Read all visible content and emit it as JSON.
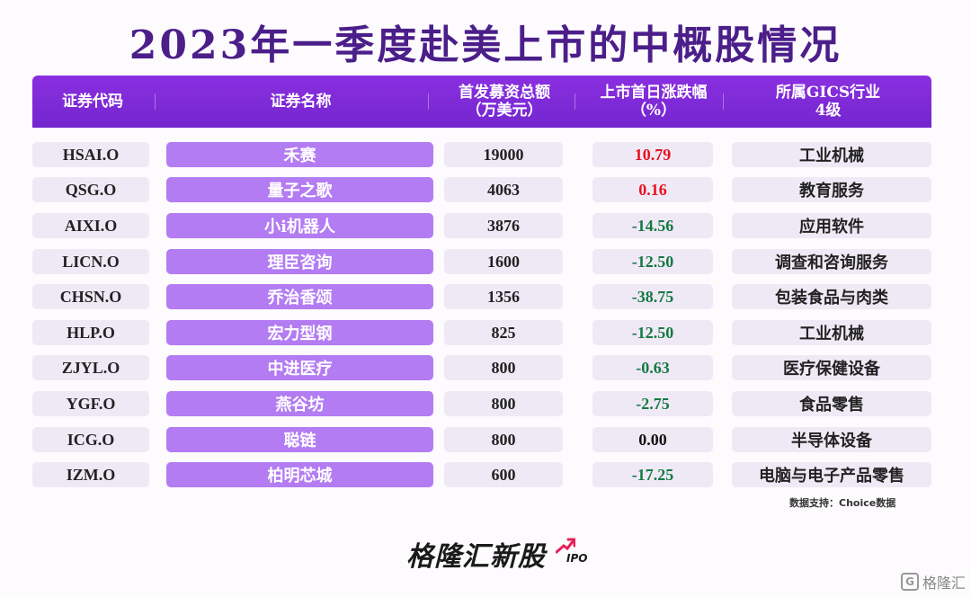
{
  "title": "2023年一季度赴美上市的中概股情况",
  "headers": [
    "证券代码",
    "证券名称",
    "首发募资总额\n（万美元）",
    "上市首日涨跌幅\n（%）",
    "所属GICS行业\n4级"
  ],
  "colors": {
    "positive": "#e8101e",
    "negative": "#157a42",
    "neutral": "#111111",
    "accent": "#7a2ad6"
  },
  "rows": [
    {
      "code": "HSAI.O",
      "name": "禾赛",
      "amount": "19000",
      "change": "10.79",
      "sign": "pos",
      "industry": "工业机械"
    },
    {
      "code": "QSG.O",
      "name": "量子之歌",
      "amount": "4063",
      "change": "0.16",
      "sign": "pos",
      "industry": "教育服务"
    },
    {
      "code": "AIXI.O",
      "name": "小i机器人",
      "amount": "3876",
      "change": "-14.56",
      "sign": "neg",
      "industry": "应用软件"
    },
    {
      "code": "LICN.O",
      "name": "理臣咨询",
      "amount": "1600",
      "change": "-12.50",
      "sign": "neg",
      "industry": "调查和咨询服务"
    },
    {
      "code": "CHSN.O",
      "name": "乔治香颂",
      "amount": "1356",
      "change": "-38.75",
      "sign": "neg",
      "industry": "包装食品与肉类"
    },
    {
      "code": "HLP.O",
      "name": "宏力型钢",
      "amount": "825",
      "change": "-12.50",
      "sign": "neg",
      "industry": "工业机械"
    },
    {
      "code": "ZJYL.O",
      "name": "中进医疗",
      "amount": "800",
      "change": "-0.63",
      "sign": "neg",
      "industry": "医疗保健设备"
    },
    {
      "code": "YGF.O",
      "name": "燕谷坊",
      "amount": "800",
      "change": "-2.75",
      "sign": "neg",
      "industry": "食品零售"
    },
    {
      "code": "ICG.O",
      "name": "聪链",
      "amount": "800",
      "change": "0.00",
      "sign": "zero",
      "industry": "半导体设备"
    },
    {
      "code": "IZM.O",
      "name": "柏明芯城",
      "amount": "600",
      "change": "-17.25",
      "sign": "neg",
      "industry": "电脑与电子产品零售"
    }
  ],
  "source": "数据支持：Choice数据",
  "logo": {
    "text": "格隆汇新股",
    "sub": "IPO"
  },
  "watermark": {
    "icon": "G",
    "text": "格隆汇"
  }
}
